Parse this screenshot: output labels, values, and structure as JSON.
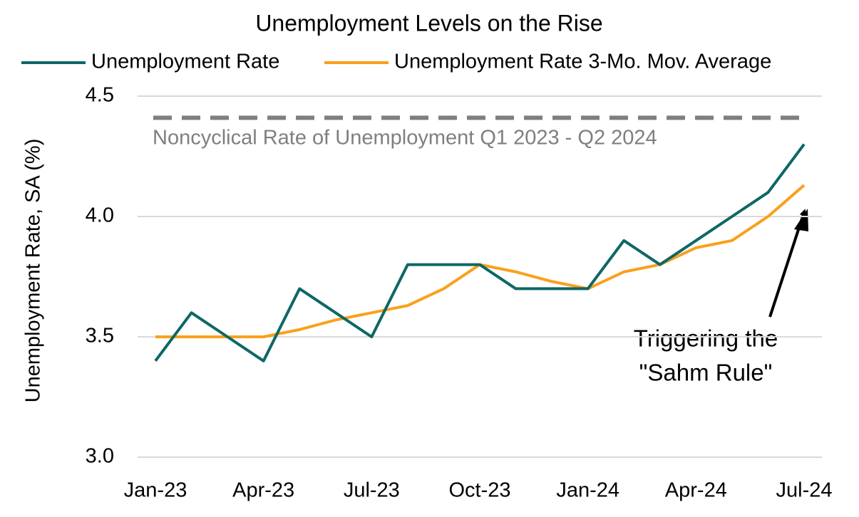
{
  "chart_data": {
    "type": "line",
    "title": "Unemployment Levels on the Rise",
    "y_label": "Unemployment Rate, SA (%)",
    "categories": [
      "Jan-23",
      null,
      null,
      "Apr-23",
      null,
      null,
      "Jul-23",
      null,
      null,
      "Oct-23",
      null,
      null,
      "Jan-24",
      null,
      null,
      "Apr-24",
      null,
      null,
      "Jul-24"
    ],
    "series": [
      {
        "name": "Unemployment Rate",
        "color": "#0e6766",
        "values": [
          3.4,
          3.6,
          3.5,
          3.4,
          3.7,
          3.6,
          3.5,
          3.8,
          3.8,
          3.8,
          3.7,
          3.7,
          3.7,
          3.9,
          3.8,
          3.9,
          4.0,
          4.1,
          4.3
        ]
      },
      {
        "name": "Unemployment Rate 3-Mo. Mov. Average",
        "color": "#f9a11b",
        "values": [
          3.5,
          3.5,
          3.5,
          3.5,
          3.53,
          3.57,
          3.6,
          3.63,
          3.7,
          3.8,
          3.77,
          3.73,
          3.7,
          3.77,
          3.8,
          3.87,
          3.9,
          4.0,
          4.13
        ]
      }
    ],
    "reference_line": {
      "value": 4.41,
      "label": "Noncyclical Rate of Unemployment Q1 2023 - Q2 2024",
      "color": "#7f7f7f"
    },
    "annotation": [
      "Triggering the",
      "\"Sahm Rule\""
    ],
    "ylim": [
      3.0,
      4.5
    ],
    "yticks": [
      {
        "value": 3,
        "label": "3.0"
      },
      3.5,
      {
        "value": 4,
        "label": "4.0"
      },
      4.5
    ],
    "grid": true,
    "legend": "top"
  }
}
